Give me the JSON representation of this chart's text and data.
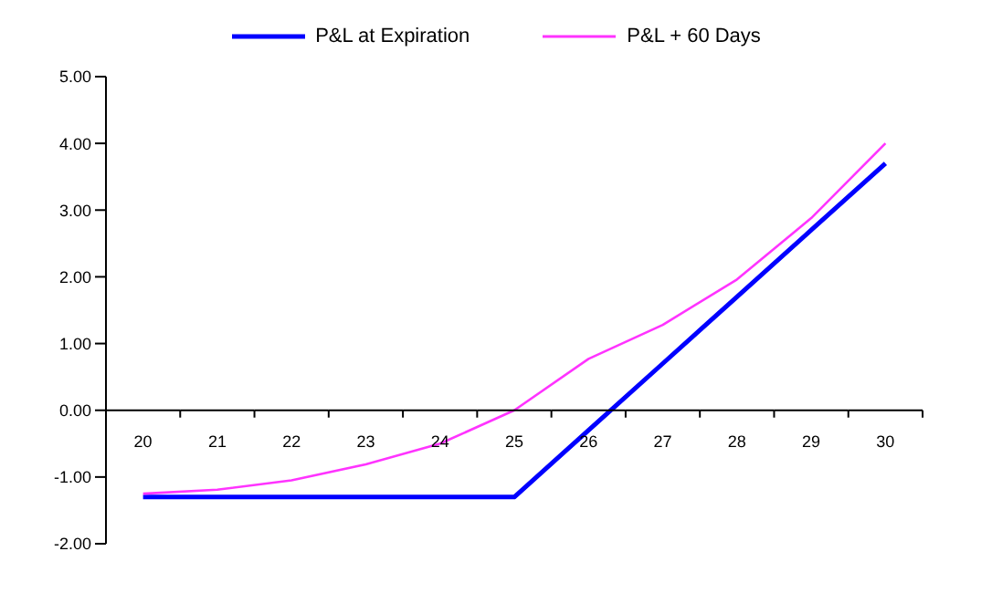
{
  "chart_data": {
    "type": "line",
    "categories": [
      "20",
      "21",
      "22",
      "23",
      "24",
      "25",
      "26",
      "27",
      "28",
      "29",
      "30"
    ],
    "series": [
      {
        "name": "P&L at Expiration",
        "color": "#0000ff",
        "values": [
          -1.3,
          -1.3,
          -1.3,
          -1.3,
          -1.3,
          -1.3,
          -0.3,
          0.7,
          1.7,
          2.7,
          3.7
        ]
      },
      {
        "name": "P&L + 60 Days",
        "color": "#ff33ff",
        "values": [
          -1.25,
          -1.19,
          -1.05,
          -0.81,
          -0.5,
          0,
          0.77,
          1.28,
          1.96,
          2.88,
          4.0
        ]
      }
    ],
    "ylim": [
      -2,
      5
    ],
    "yticks": [
      {
        "value": -2,
        "label": "-2.00"
      },
      {
        "value": -1,
        "label": "-1.00"
      },
      {
        "value": 0,
        "label": "0.00"
      },
      {
        "value": 1,
        "label": "1.00"
      },
      {
        "value": 2,
        "label": "2.00"
      },
      {
        "value": 3,
        "label": "3.00"
      },
      {
        "value": 4,
        "label": "4.00"
      },
      {
        "value": 5,
        "label": "5.00"
      }
    ],
    "grid": false,
    "legend": "top"
  }
}
